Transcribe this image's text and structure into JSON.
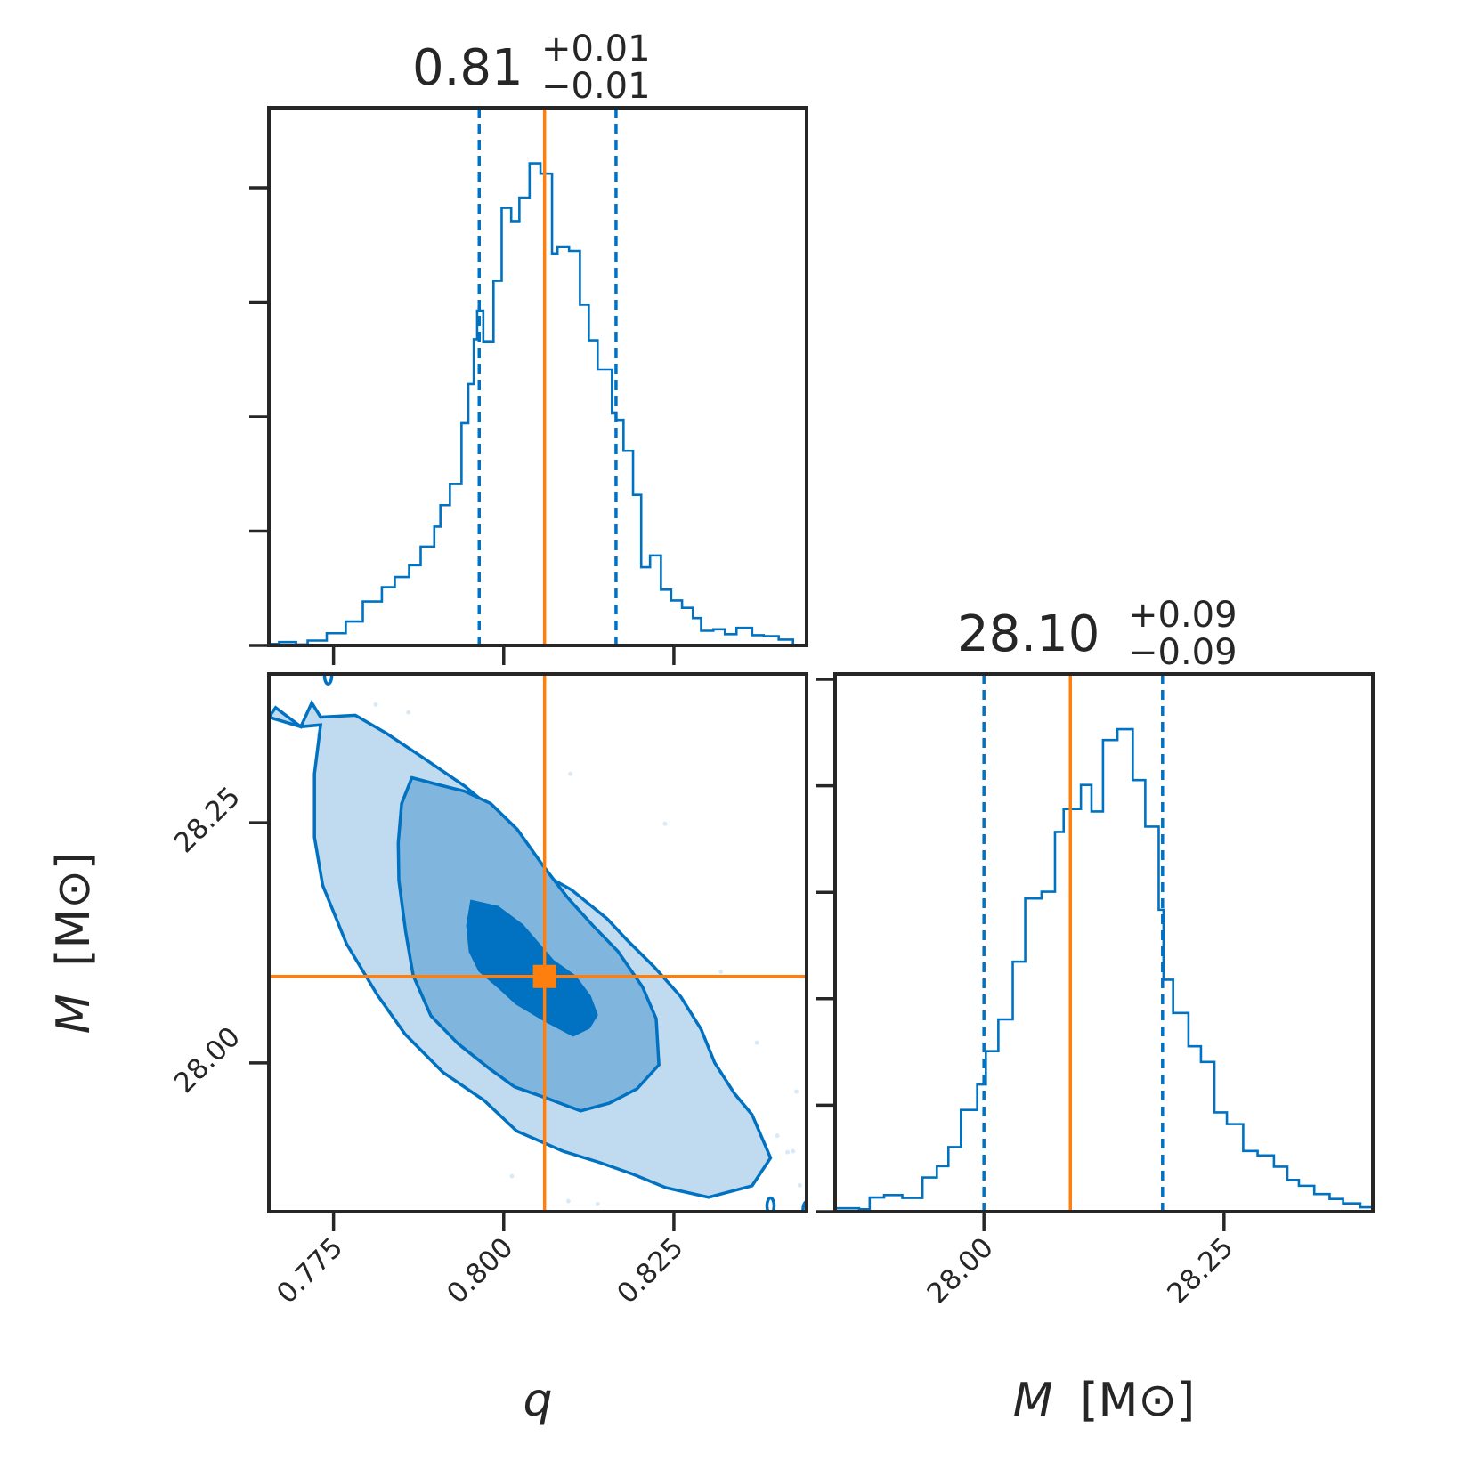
{
  "chart_data": {
    "type": "corner",
    "parameters": [
      {
        "key": "q",
        "label": "q",
        "range": [
          0.7655,
          0.8445
        ],
        "ticks": [
          0.775,
          0.8,
          0.825
        ],
        "tick_labels": [
          "0.775",
          "0.800",
          "0.825"
        ]
      },
      {
        "key": "M",
        "label": "M",
        "unit": "[M⊙]",
        "range": [
          27.845,
          28.405
        ],
        "ticks": [
          28.0,
          28.25
        ],
        "tick_labels": [
          "28.00",
          "28.25"
        ]
      }
    ],
    "titles": [
      {
        "value": "0.81",
        "plus": "+0.01",
        "minus": "−0.01"
      },
      {
        "value": "28.10",
        "plus": "+0.09",
        "minus": "−0.09"
      }
    ],
    "truth": {
      "q": 0.806,
      "M": 28.09
    },
    "quantiles": {
      "q": [
        0.7964,
        0.8165
      ],
      "M": [
        28.0,
        28.186
      ]
    },
    "colors": {
      "posterior": "#0072c1",
      "truth": "#ff7f0e",
      "levels": [
        "#c0daf0",
        "#80b5de",
        "#0072c1"
      ]
    },
    "hist_q": {
      "edges": [
        0.7655,
        0.767,
        0.7695,
        0.7712,
        0.774,
        0.7768,
        0.7793,
        0.7821,
        0.784,
        0.7861,
        0.7878,
        0.7898,
        0.7907,
        0.7921,
        0.7938,
        0.7948,
        0.7956,
        0.7961,
        0.797,
        0.7985,
        0.7997,
        0.8011,
        0.8023,
        0.8038,
        0.8054,
        0.8071,
        0.8079,
        0.8096,
        0.8112,
        0.8125,
        0.8138,
        0.8159,
        0.8165,
        0.8176,
        0.819,
        0.8202,
        0.8215,
        0.8231,
        0.8246,
        0.8262,
        0.8278,
        0.829,
        0.8308,
        0.8325,
        0.8342,
        0.8365,
        0.8382,
        0.8404,
        0.8425,
        0.8445
      ],
      "counts": [
        0.003,
        0.007,
        0.002,
        0.01,
        0.025,
        0.049,
        0.09,
        0.119,
        0.14,
        0.164,
        0.202,
        0.243,
        0.287,
        0.33,
        0.455,
        0.535,
        0.625,
        0.684,
        0.621,
        0.745,
        0.894,
        0.867,
        0.915,
        0.985,
        0.964,
        0.801,
        0.815,
        0.806,
        0.696,
        0.623,
        0.564,
        0.475,
        0.46,
        0.398,
        0.308,
        0.16,
        0.184,
        0.114,
        0.092,
        0.077,
        0.056,
        0.03,
        0.033,
        0.023,
        0.036,
        0.021,
        0.019,
        0.012,
        0.0
      ]
    },
    "hist_M": {
      "edges": [
        27.845,
        27.87,
        27.881,
        27.896,
        27.915,
        27.936,
        27.951,
        27.963,
        27.976,
        27.993,
        28.002,
        28.015,
        28.03,
        28.043,
        28.06,
        28.074,
        28.083,
        28.101,
        28.112,
        28.124,
        28.139,
        28.155,
        28.168,
        28.182,
        28.187,
        28.197,
        28.213,
        28.226,
        28.24,
        28.253,
        28.27,
        28.285,
        28.302,
        28.316,
        28.328,
        28.344,
        28.36,
        28.374,
        28.392,
        28.405
      ],
      "counts": [
        0.007,
        0.005,
        0.029,
        0.034,
        0.028,
        0.07,
        0.093,
        0.132,
        0.208,
        0.26,
        0.328,
        0.393,
        0.511,
        0.64,
        0.654,
        0.776,
        0.823,
        0.872,
        0.818,
        0.964,
        0.986,
        0.882,
        0.787,
        0.617,
        0.474,
        0.406,
        0.338,
        0.306,
        0.203,
        0.179,
        0.124,
        0.115,
        0.092,
        0.065,
        0.053,
        0.036,
        0.026,
        0.017,
        0.009
      ]
    },
    "contour_levels": [
      [
        [
          0.7655,
          28.36
        ],
        [
          0.7665,
          28.37
        ],
        [
          0.7702,
          28.35
        ],
        [
          0.7718,
          28.375
        ],
        [
          0.7731,
          28.36
        ],
        [
          0.7782,
          28.362
        ],
        [
          0.7828,
          28.343
        ],
        [
          0.7881,
          28.318
        ],
        [
          0.7943,
          28.288
        ],
        [
          0.8006,
          28.251
        ],
        [
          0.8047,
          28.201
        ],
        [
          0.81,
          28.18
        ],
        [
          0.8152,
          28.15
        ],
        [
          0.8181,
          28.128
        ],
        [
          0.8221,
          28.1
        ],
        [
          0.826,
          28.069
        ],
        [
          0.829,
          28.035
        ],
        [
          0.831,
          28.0
        ],
        [
          0.8339,
          27.968
        ],
        [
          0.8365,
          27.946
        ],
        [
          0.8392,
          27.901
        ],
        [
          0.8365,
          27.872
        ],
        [
          0.8301,
          27.86
        ],
        [
          0.8238,
          27.87
        ],
        [
          0.819,
          27.884
        ],
        [
          0.8142,
          27.896
        ],
        [
          0.8087,
          27.908
        ],
        [
          0.8019,
          27.929
        ],
        [
          0.7971,
          27.961
        ],
        [
          0.7911,
          27.99
        ],
        [
          0.7855,
          28.03
        ],
        [
          0.7814,
          28.071
        ],
        [
          0.7769,
          28.124
        ],
        [
          0.7734,
          28.185
        ],
        [
          0.7722,
          28.235
        ],
        [
          0.7722,
          28.301
        ],
        [
          0.7731,
          28.352
        ],
        [
          0.7702,
          28.35
        ],
        [
          0.7655,
          28.36
        ]
      ],
      [
        [
          0.785,
          28.27
        ],
        [
          0.7865,
          28.297
        ],
        [
          0.7902,
          28.29
        ],
        [
          0.7942,
          28.283
        ],
        [
          0.7981,
          28.27
        ],
        [
          0.802,
          28.243
        ],
        [
          0.8057,
          28.206
        ],
        [
          0.8094,
          28.172
        ],
        [
          0.8131,
          28.143
        ],
        [
          0.8168,
          28.116
        ],
        [
          0.8204,
          28.079
        ],
        [
          0.8224,
          28.046
        ],
        [
          0.8228,
          27.998
        ],
        [
          0.8196,
          27.973
        ],
        [
          0.8155,
          27.958
        ],
        [
          0.8113,
          27.95
        ],
        [
          0.8064,
          27.963
        ],
        [
          0.8016,
          27.975
        ],
        [
          0.7979,
          27.994
        ],
        [
          0.7933,
          28.02
        ],
        [
          0.7893,
          28.049
        ],
        [
          0.7867,
          28.091
        ],
        [
          0.7856,
          28.136
        ],
        [
          0.7846,
          28.19
        ],
        [
          0.7845,
          28.229
        ],
        [
          0.785,
          28.27
        ]
      ],
      [
        [
          0.7953,
          28.168
        ],
        [
          0.7991,
          28.162
        ],
        [
          0.8027,
          28.143
        ],
        [
          0.8072,
          28.106
        ],
        [
          0.8104,
          28.09
        ],
        [
          0.8126,
          28.069
        ],
        [
          0.8136,
          28.05
        ],
        [
          0.8125,
          28.037
        ],
        [
          0.8102,
          28.029
        ],
        [
          0.8062,
          28.044
        ],
        [
          0.8019,
          28.062
        ],
        [
          0.7993,
          28.079
        ],
        [
          0.7965,
          28.096
        ],
        [
          0.7951,
          28.116
        ],
        [
          0.7947,
          28.143
        ],
        [
          0.7953,
          28.168
        ]
      ]
    ],
    "outlier_points": [
      [
        0.772,
        28.36
      ],
      [
        0.7728,
        28.342
      ],
      [
        0.776,
        28.295
      ],
      [
        0.786,
        28.365
      ],
      [
        0.7812,
        28.373
      ],
      [
        0.8098,
        28.301
      ],
      [
        0.8237,
        28.249
      ],
      [
        0.8319,
        28.095
      ],
      [
        0.8372,
        28.021
      ],
      [
        0.8402,
        27.924
      ],
      [
        0.8425,
        27.908
      ],
      [
        0.8417,
        27.907
      ],
      [
        0.8435,
        27.8725
      ],
      [
        0.843,
        27.97
      ],
      [
        0.8012,
        27.882
      ],
      [
        0.8095,
        27.856
      ],
      [
        0.8138,
        27.853
      ]
    ],
    "edge_blobs": [
      [
        0.7742,
        28.403
      ],
      [
        0.8392,
        27.851
      ],
      [
        0.8445,
        27.847
      ]
    ]
  }
}
